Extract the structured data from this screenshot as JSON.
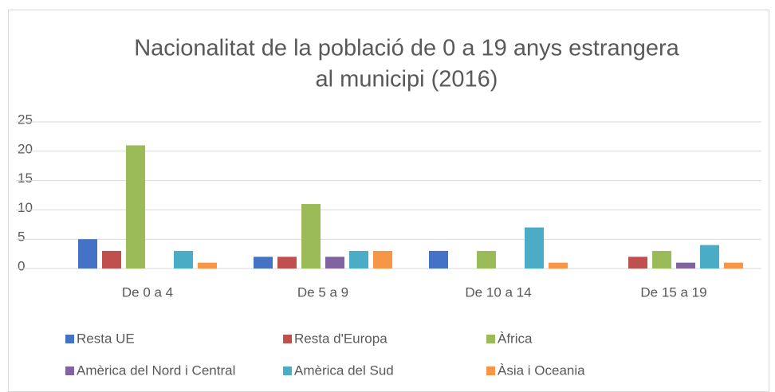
{
  "chart_data": {
    "type": "bar",
    "title": [
      "Nacionalitat de la població de 0 a 19 anys estrangera",
      "al municipi (2016)"
    ],
    "categories": [
      "De 0 a 4",
      "De 5 a 9",
      "De 10 a 14",
      "De 15 a 19"
    ],
    "series": [
      {
        "name": "Resta UE",
        "color": "#4472c4",
        "values": [
          5,
          2,
          3,
          0
        ]
      },
      {
        "name": "Resta d'Europa",
        "color": "#c0504d",
        "values": [
          3,
          2,
          0,
          2
        ]
      },
      {
        "name": "Àfrica",
        "color": "#9bbb59",
        "values": [
          21,
          11,
          3,
          3
        ]
      },
      {
        "name": "Amèrica del Nord i Central",
        "color": "#8064a2",
        "values": [
          0,
          2,
          0,
          1
        ]
      },
      {
        "name": "Amèrica del Sud",
        "color": "#4bacc6",
        "values": [
          3,
          3,
          7,
          4
        ]
      },
      {
        "name": "Àsia i Oceania",
        "color": "#f79646",
        "values": [
          1,
          3,
          1,
          1
        ]
      }
    ],
    "ylim": [
      0,
      25
    ],
    "yticks": [
      0,
      5,
      10,
      15,
      20,
      25
    ],
    "grid": true,
    "legend": "bottom"
  }
}
